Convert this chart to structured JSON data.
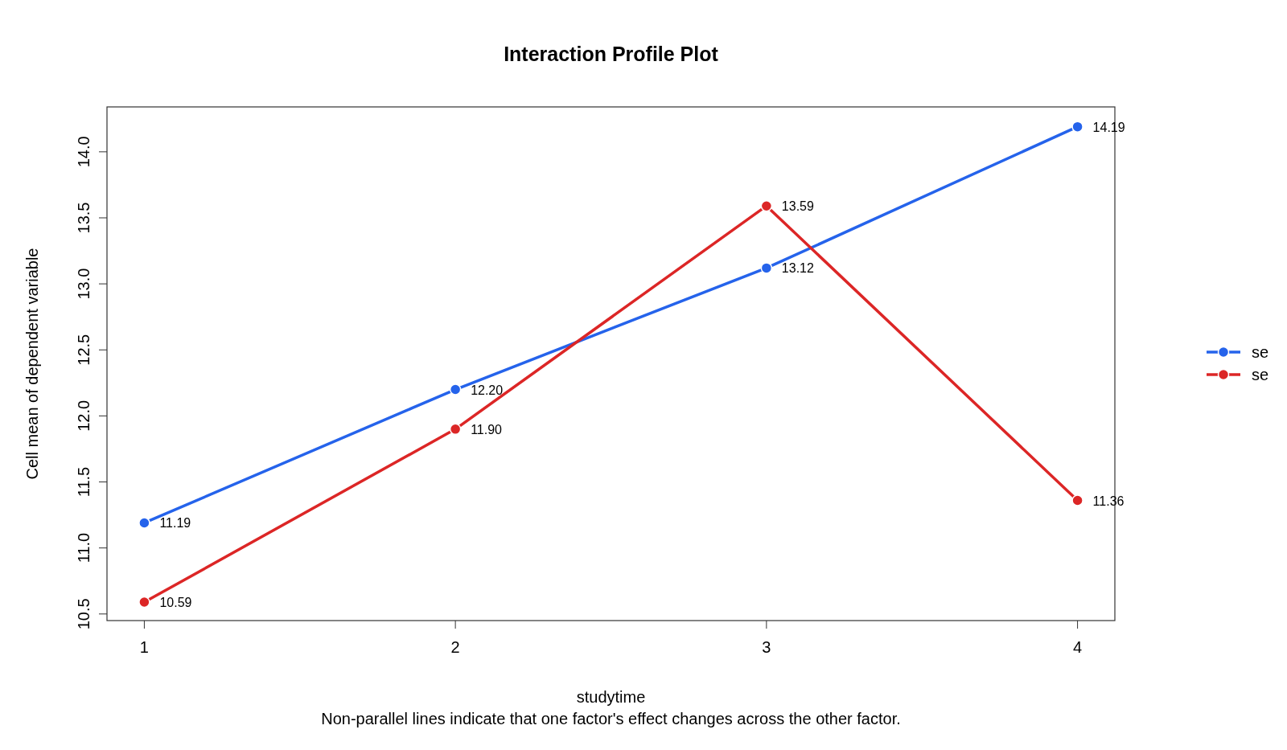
{
  "chart_data": {
    "type": "line",
    "title": "Interaction Profile Plot",
    "xlabel": "studytime",
    "ylabel": "Cell mean of dependent variable",
    "annotations": [
      "Non-parallel lines indicate that one factor's effect changes across the other factor."
    ],
    "x": [
      1,
      2,
      3,
      4
    ],
    "xlim": [
      0.88,
      4.12
    ],
    "xticks": [
      1,
      2,
      3,
      4
    ],
    "ylim": [
      10.45,
      14.34
    ],
    "yticks": [
      {
        "value": 10.5,
        "label": "10.5"
      },
      {
        "value": 11,
        "label": "11.0"
      },
      {
        "value": 11.5,
        "label": "11.5"
      },
      {
        "value": 12,
        "label": "12.0"
      },
      {
        "value": 12.5,
        "label": "12.5"
      },
      {
        "value": 13,
        "label": "13.0"
      },
      {
        "value": 13.5,
        "label": "13.5"
      },
      {
        "value": 14,
        "label": "14.0"
      }
    ],
    "series": [
      {
        "name": "se",
        "color": "#2563eb",
        "values": [
          11.19,
          12.2,
          13.12,
          14.19
        ],
        "value_labels": [
          "11.19",
          "12.20",
          "13.12",
          "14.19"
        ]
      },
      {
        "name": "se",
        "color": "#dc2626",
        "values": [
          10.59,
          11.9,
          13.59,
          11.36
        ],
        "value_labels": [
          "10.59",
          "11.90",
          "13.59",
          "11.36"
        ]
      }
    ],
    "marker": "circle",
    "legend": "right",
    "grid": false
  }
}
